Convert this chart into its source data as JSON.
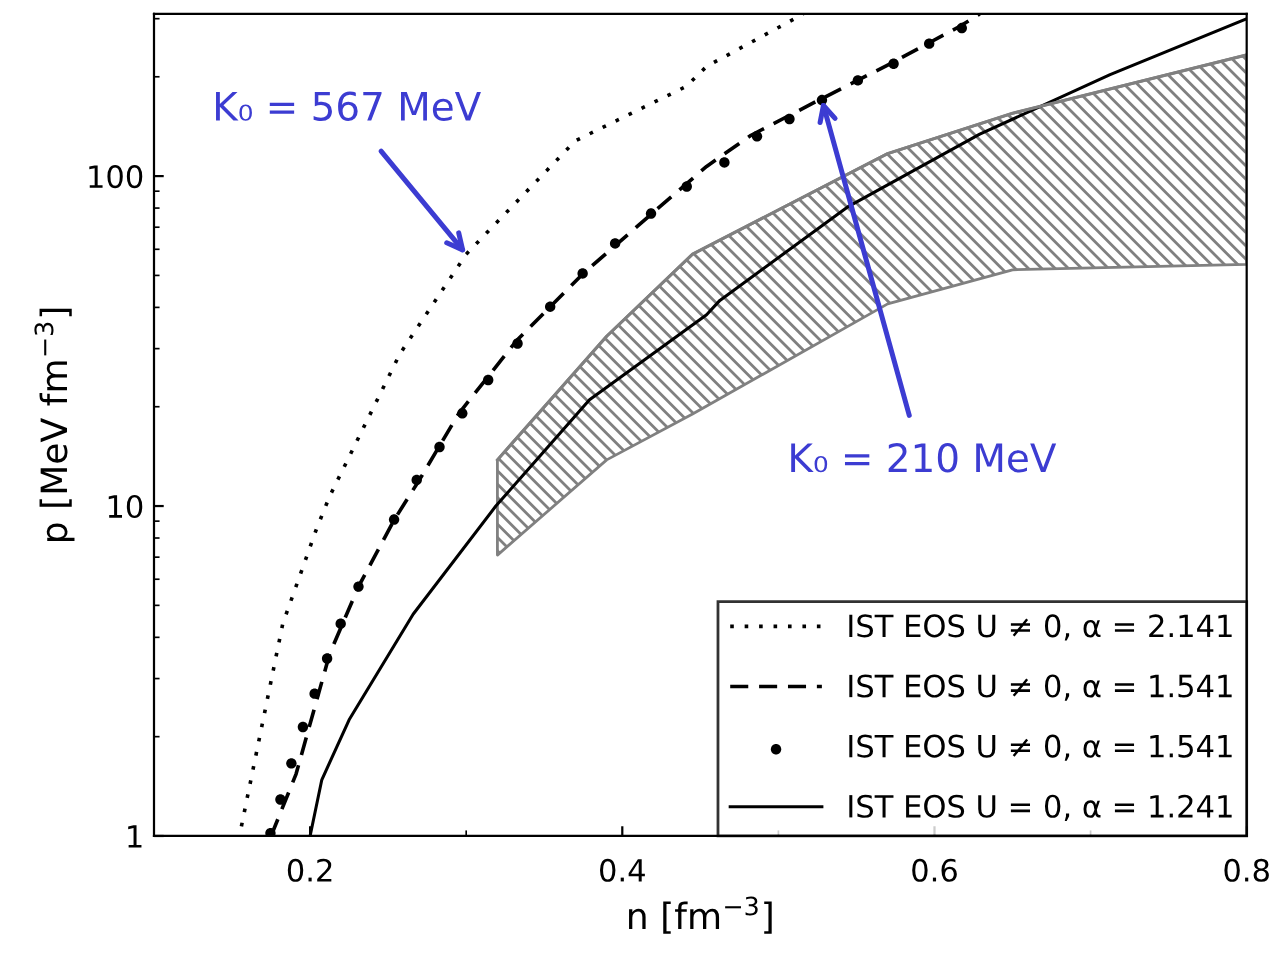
{
  "chart_data": {
    "type": "line",
    "xlabel": "n [fm$^{−3}$]",
    "ylabel": "p [MeV fm$^{−3}$]",
    "log": "y",
    "xlim": [
      0.1,
      0.8
    ],
    "ylim": [
      1,
      310
    ],
    "xticks": [
      0.2,
      0.4,
      0.6,
      0.8
    ],
    "yticks": [
      1,
      10,
      100
    ],
    "legend": "bottom right",
    "grid": false,
    "series": [
      {
        "name": "IST EOS U ≠ 0, α = 2.141",
        "color": "#000000",
        "line_style": "dotted",
        "x": [
          0.156,
          0.1825,
          0.204,
          0.2125,
          0.2575,
          0.3,
          0.37,
          0.441,
          0.454,
          0.516
        ],
        "values": [
          1.07,
          4.4,
          8.5,
          10.7,
          28.9,
          58,
          128,
          187,
          215,
          310
        ]
      },
      {
        "name": "IST EOS U ≠ 0, α = 1.541",
        "color": "#000000",
        "line_style": "dashed",
        "x": [
          0.175,
          0.191,
          0.2125,
          0.231,
          0.254,
          0.27,
          0.295,
          0.3325,
          0.375,
          0.419,
          0.454,
          0.4825,
          0.526,
          0.57,
          0.616,
          0.629
        ],
        "values": [
          1.0,
          1.54,
          3.56,
          5.7,
          9.1,
          12,
          19,
          31.8,
          50.7,
          77,
          107,
          133,
          170,
          217,
          284,
          310
        ]
      },
      {
        "name": "IST EOS U ≠ 0, α = 1.541",
        "color": "#000000",
        "type": "scatter",
        "marker": "circle",
        "x": [
          0.1746,
          0.181,
          0.188,
          0.1954,
          0.2029,
          0.2109,
          0.2196,
          0.231,
          0.2538,
          0.2683,
          0.2829,
          0.2975,
          0.3141,
          0.3329,
          0.3538,
          0.3746,
          0.3954,
          0.4184,
          0.4413,
          0.4654,
          0.4863,
          0.5071,
          0.5279,
          0.5509,
          0.5738,
          0.5966,
          0.6175
        ],
        "values": [
          1.02,
          1.29,
          1.66,
          2.14,
          2.7,
          3.45,
          4.4,
          5.7,
          9.1,
          12,
          15.1,
          19.1,
          24.1,
          31.1,
          40.2,
          50.7,
          62.5,
          77,
          93,
          110,
          132,
          149,
          170,
          195,
          219,
          252,
          281
        ]
      },
      {
        "name": "IST EOS U = 0, α = 1.241",
        "color": "#000000",
        "line_style": "solid",
        "x": [
          0.2,
          0.2075,
          0.225,
          0.266,
          0.319,
          0.345,
          0.379,
          0.454,
          0.4625,
          0.545,
          0.629,
          0.7125,
          0.8
        ],
        "values": [
          1.0,
          1.48,
          2.25,
          4.7,
          10,
          13.8,
          21,
          38,
          42,
          81,
          134,
          203,
          300
        ]
      },
      {
        "type": "line",
        "color": "#808080",
        "x": [
          0.32,
          0.39,
          0.445,
          0.57,
          0.65,
          0.8
        ],
        "values": [
          13.8,
          32.7,
          58,
          117,
          155,
          233
        ],
        "lower": [
          7.1,
          13.8,
          19,
          41,
          52,
          54
        ],
        "upper": [
          13.8,
          32.7,
          58,
          117,
          155,
          233
        ]
      }
    ],
    "annotations": [
      {
        "text": "K₀ = 567 MeV",
        "x": 0.3,
        "y": 58
      },
      {
        "text": "K₀ = 210 MeV",
        "x": 0.5279,
        "y": 170
      }
    ]
  }
}
